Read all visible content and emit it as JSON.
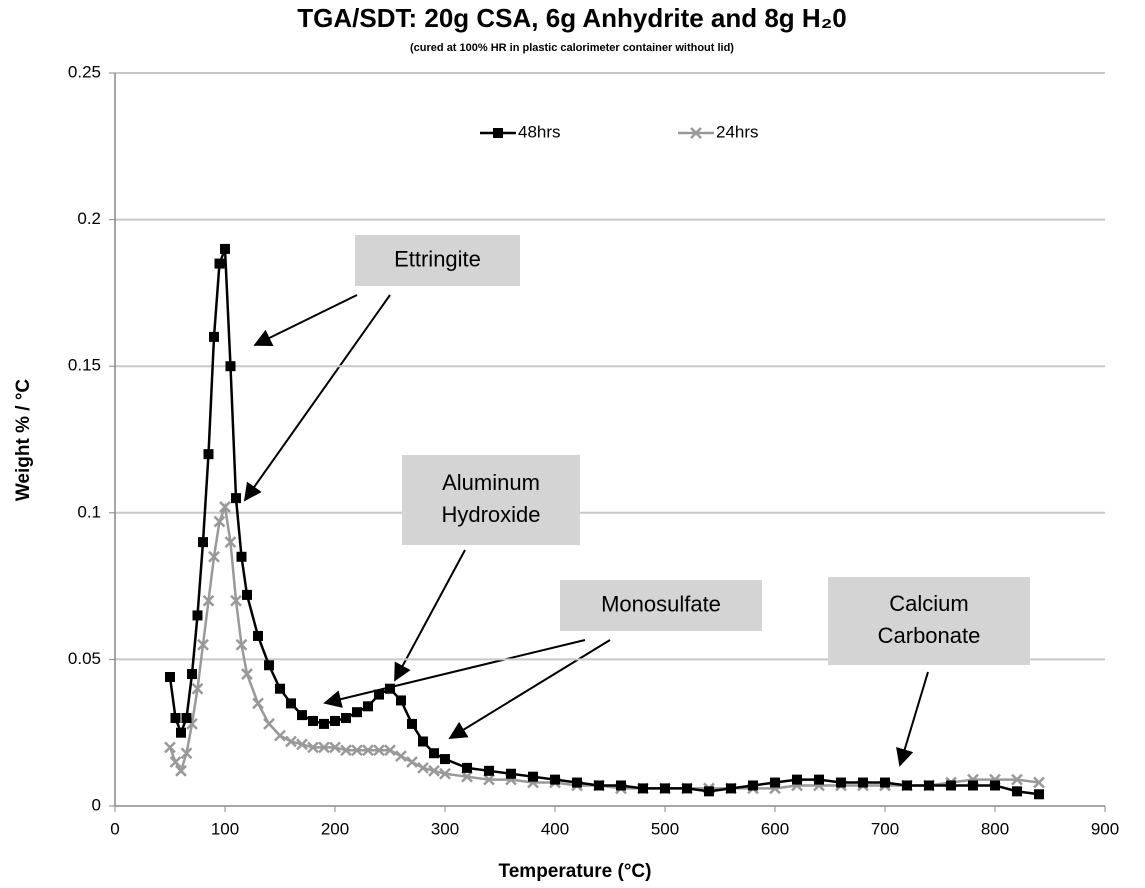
{
  "chart_data": {
    "type": "line_scatter",
    "title": "TGA/SDT:  20g CSA, 6g Anhydrite and 8g H₂0",
    "subtitle": "(cured at 100% HR in plastic calorimeter container without lid)",
    "x_label": "Temperature (°C)",
    "y_label": "Weight % / °C",
    "xlim": [
      0,
      900
    ],
    "xticks": [
      0,
      100,
      200,
      300,
      400,
      500,
      600,
      700,
      800,
      900
    ],
    "ylim": [
      0,
      0.25
    ],
    "yticks": [
      0,
      0.05,
      0.1,
      0.15,
      0.2,
      0.25
    ],
    "grid": true,
    "legend": "top",
    "x": [
      50,
      55,
      60,
      65,
      70,
      75,
      80,
      85,
      90,
      95,
      100,
      105,
      110,
      115,
      120,
      130,
      140,
      150,
      160,
      170,
      180,
      190,
      200,
      210,
      220,
      230,
      240,
      250,
      260,
      270,
      280,
      290,
      300,
      320,
      340,
      360,
      380,
      400,
      420,
      440,
      460,
      480,
      500,
      520,
      540,
      560,
      580,
      600,
      620,
      640,
      660,
      680,
      700,
      720,
      740,
      760,
      780,
      800,
      820,
      840
    ],
    "series": [
      {
        "name": "48hrs",
        "color": "#000000",
        "marker": "square",
        "values": [
          0.044,
          0.03,
          0.025,
          0.03,
          0.045,
          0.065,
          0.09,
          0.12,
          0.16,
          0.185,
          0.19,
          0.15,
          0.105,
          0.085,
          0.072,
          0.058,
          0.048,
          0.04,
          0.035,
          0.031,
          0.029,
          0.028,
          0.029,
          0.03,
          0.032,
          0.034,
          0.038,
          0.04,
          0.036,
          0.028,
          0.022,
          0.018,
          0.016,
          0.013,
          0.012,
          0.011,
          0.01,
          0.009,
          0.008,
          0.007,
          0.007,
          0.006,
          0.006,
          0.006,
          0.005,
          0.006,
          0.007,
          0.008,
          0.009,
          0.009,
          0.008,
          0.008,
          0.008,
          0.007,
          0.007,
          0.007,
          0.007,
          0.007,
          0.005,
          0.004
        ]
      },
      {
        "name": "24hrs",
        "color": "#999999",
        "marker": "x",
        "values": [
          0.02,
          0.015,
          0.012,
          0.018,
          0.028,
          0.04,
          0.055,
          0.07,
          0.085,
          0.097,
          0.102,
          0.09,
          0.07,
          0.055,
          0.045,
          0.035,
          0.028,
          0.024,
          0.022,
          0.021,
          0.02,
          0.02,
          0.02,
          0.019,
          0.019,
          0.019,
          0.019,
          0.019,
          0.017,
          0.015,
          0.013,
          0.012,
          0.011,
          0.01,
          0.009,
          0.009,
          0.008,
          0.008,
          0.007,
          0.007,
          0.006,
          0.006,
          0.006,
          0.006,
          0.006,
          0.006,
          0.006,
          0.006,
          0.007,
          0.007,
          0.007,
          0.007,
          0.007,
          0.007,
          0.007,
          0.008,
          0.009,
          0.009,
          0.009,
          0.008
        ]
      }
    ],
    "annotations": [
      {
        "lines": [
          "Ettringite"
        ]
      },
      {
        "lines": [
          "Aluminum",
          "Hydroxide"
        ]
      },
      {
        "lines": [
          "Monosulfate"
        ]
      },
      {
        "lines": [
          "Calcium",
          "Carbonate"
        ]
      }
    ]
  }
}
